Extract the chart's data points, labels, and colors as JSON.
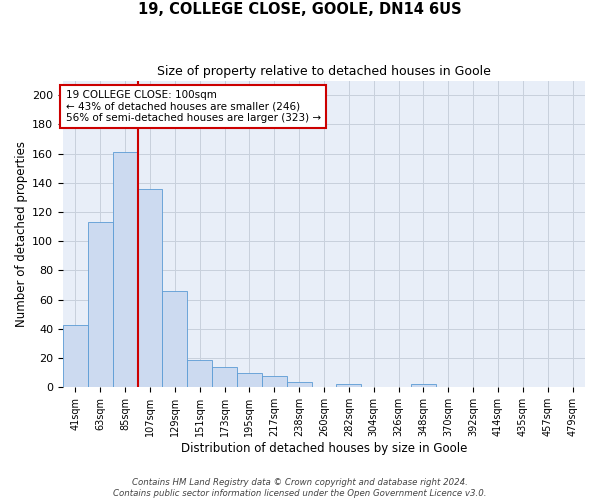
{
  "title": "19, COLLEGE CLOSE, GOOLE, DN14 6US",
  "subtitle": "Size of property relative to detached houses in Goole",
  "xlabel": "Distribution of detached houses by size in Goole",
  "ylabel": "Number of detached properties",
  "categories": [
    "41sqm",
    "63sqm",
    "85sqm",
    "107sqm",
    "129sqm",
    "151sqm",
    "173sqm",
    "195sqm",
    "217sqm",
    "238sqm",
    "260sqm",
    "282sqm",
    "304sqm",
    "326sqm",
    "348sqm",
    "370sqm",
    "392sqm",
    "414sqm",
    "435sqm",
    "457sqm",
    "479sqm"
  ],
  "values": [
    43,
    113,
    161,
    136,
    66,
    19,
    14,
    10,
    8,
    4,
    0,
    2,
    0,
    0,
    2,
    0,
    0,
    0,
    0,
    0,
    0
  ],
  "bar_color": "#ccdaf0",
  "bar_edge_color": "#5b9bd5",
  "grid_color": "#c8d0dc",
  "background_color": "#e8eef8",
  "vline_color": "#cc0000",
  "annotation_text": "19 COLLEGE CLOSE: 100sqm\n← 43% of detached houses are smaller (246)\n56% of semi-detached houses are larger (323) →",
  "annotation_box_color": "#ffffff",
  "annotation_edge_color": "#cc0000",
  "footer": "Contains HM Land Registry data © Crown copyright and database right 2024.\nContains public sector information licensed under the Open Government Licence v3.0.",
  "ylim": [
    0,
    210
  ],
  "yticks": [
    0,
    20,
    40,
    60,
    80,
    100,
    120,
    140,
    160,
    180,
    200
  ]
}
